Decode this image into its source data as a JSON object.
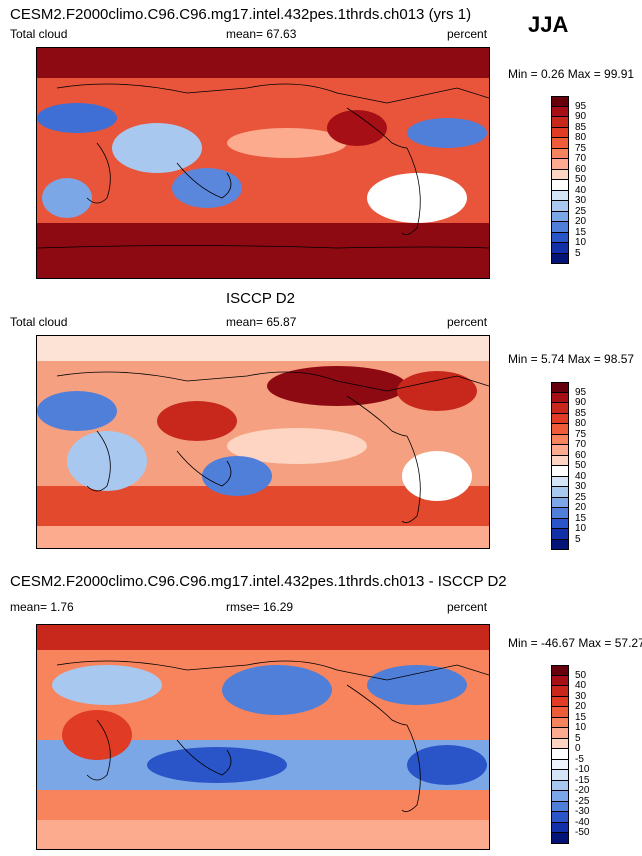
{
  "season": "JJA",
  "panels": [
    {
      "id": "model",
      "title": "CESM2.F2000climo.C96.C96.mg17.intel.432pes.1thrds.ch013 (yrs 1)",
      "left_label": "Total cloud",
      "center_label": "mean=  67.63",
      "right_label": "percent",
      "stats": "Min =   0.26 Max =  99.91",
      "colorbar_labels": [
        "95",
        "90",
        "85",
        "80",
        "75",
        "70",
        "60",
        "50",
        "40",
        "30",
        "25",
        "20",
        "15",
        "10",
        "5"
      ],
      "colorbar_colors": [
        "#67000d",
        "#a50f15",
        "#c8281c",
        "#e03b24",
        "#ef5c3a",
        "#f7845c",
        "#fcab8f",
        "#fdd5c2",
        "#ffffff",
        "#d6e4f7",
        "#a9c8ef",
        "#7ba7e6",
        "#4f7fd9",
        "#2a55c8",
        "#1230a8",
        "#031476"
      ],
      "map_theme": "warm"
    },
    {
      "id": "obs",
      "title": "ISCCP D2",
      "left_label": "Total cloud",
      "center_label": "mean=  65.87",
      "right_label": "percent",
      "stats": "Min =   5.74 Max =  98.57",
      "colorbar_labels": [
        "95",
        "90",
        "85",
        "80",
        "75",
        "70",
        "60",
        "50",
        "40",
        "30",
        "25",
        "20",
        "15",
        "10",
        "5"
      ],
      "colorbar_colors": [
        "#67000d",
        "#a50f15",
        "#c8281c",
        "#e03b24",
        "#ef5c3a",
        "#f7845c",
        "#fcab8f",
        "#fdd5c2",
        "#ffffff",
        "#d6e4f7",
        "#a9c8ef",
        "#7ba7e6",
        "#4f7fd9",
        "#2a55c8",
        "#1230a8",
        "#031476"
      ],
      "map_theme": "mixed"
    },
    {
      "id": "diff",
      "title": "CESM2.F2000climo.C96.C96.mg17.intel.432pes.1thrds.ch013 - ISCCP D2",
      "left_label": "mean=   1.76",
      "center_label": "rmse=  16.29",
      "right_label": "percent",
      "stats": "Min = -46.67 Max =  57.27",
      "colorbar_labels": [
        "50",
        "40",
        "30",
        "20",
        "15",
        "10",
        "5",
        "0",
        "-5",
        "-10",
        "-15",
        "-20",
        "-25",
        "-30",
        "-40",
        "-50"
      ],
      "colorbar_colors": [
        "#67000d",
        "#a50f15",
        "#c8281c",
        "#e03b24",
        "#ef5c3a",
        "#f7845c",
        "#fcab8f",
        "#fdd5c2",
        "#ffffff",
        "#eef3fc",
        "#d6e4f7",
        "#a9c8ef",
        "#7ba7e6",
        "#4f7fd9",
        "#2a55c8",
        "#1230a8",
        "#031476"
      ],
      "map_theme": "diff"
    }
  ]
}
